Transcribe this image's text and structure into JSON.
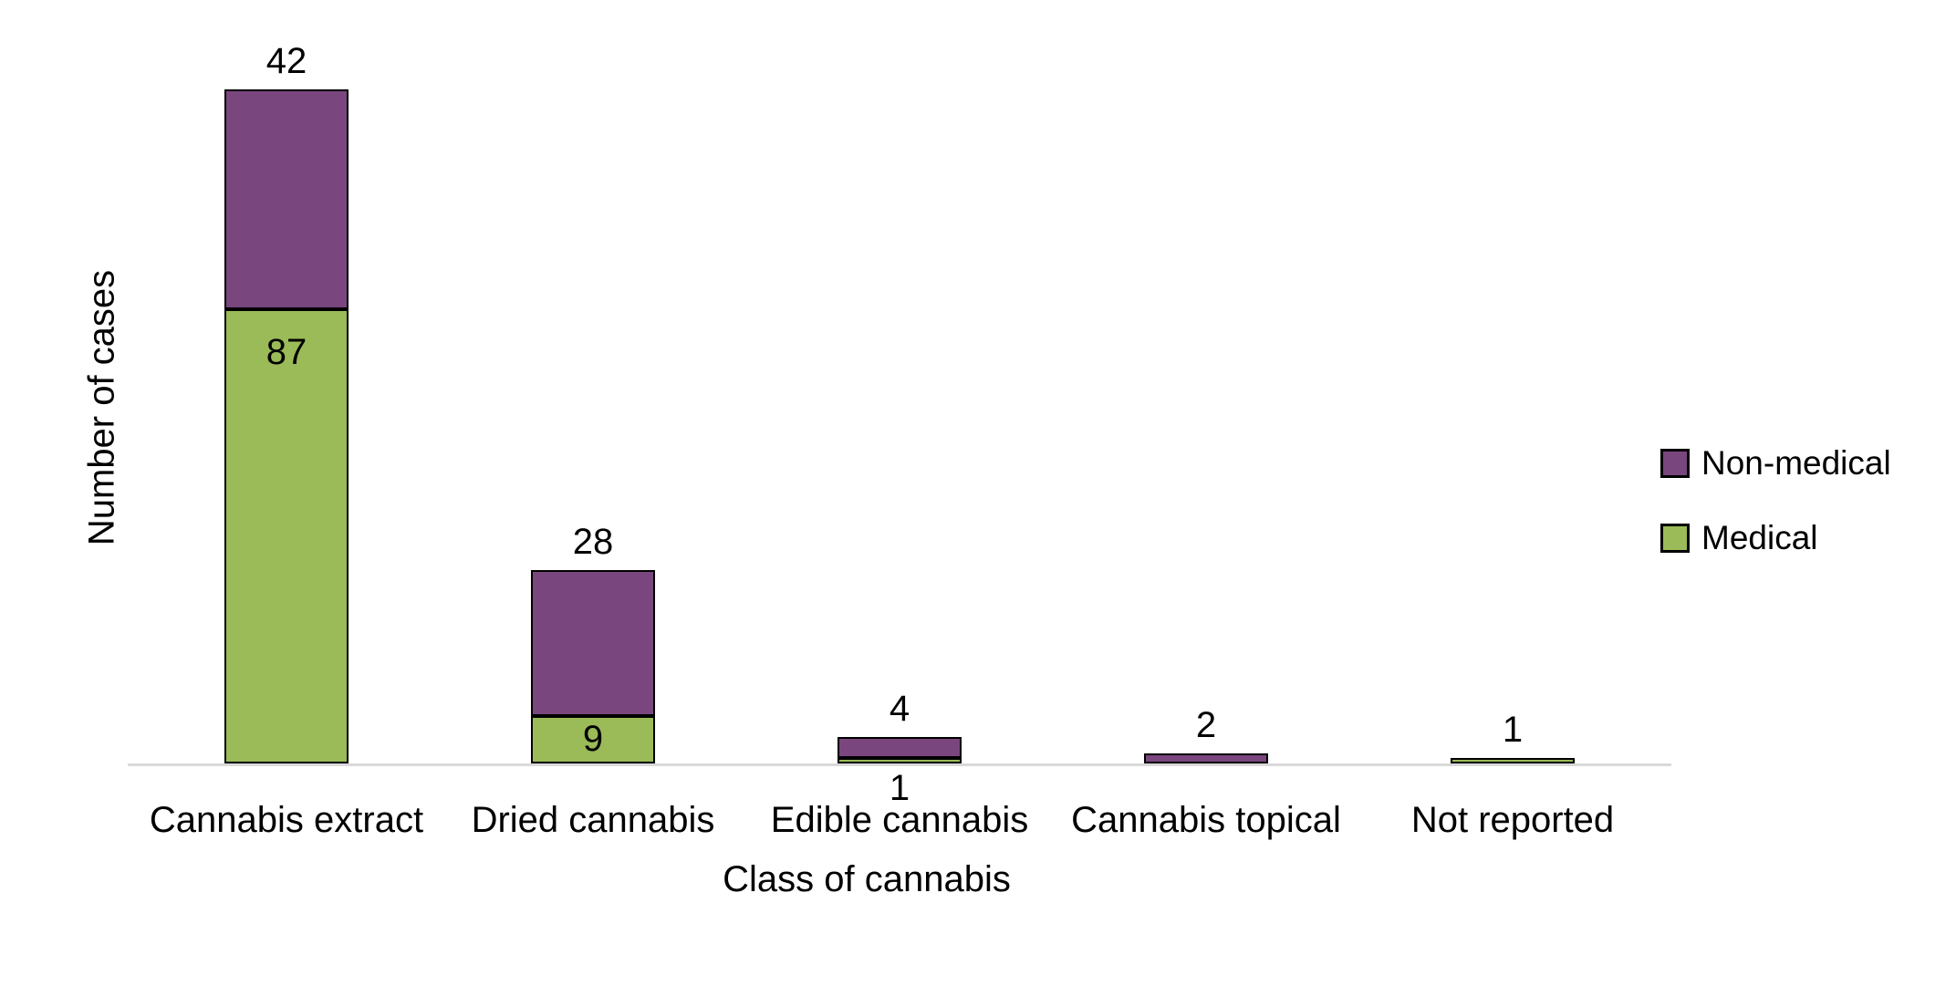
{
  "colors": {
    "non_medical": "#7A467E",
    "medical": "#9ABB57",
    "bar_border": "#000000",
    "axis_line": "#D9D9D9",
    "text": "#000000",
    "background": "#FFFFFF"
  },
  "chart_data": {
    "type": "bar",
    "stacked": true,
    "orientation": "vertical",
    "title": "",
    "xlabel": "Class of cannabis",
    "ylabel": "Number of cases",
    "categories": [
      "Cannabis extract",
      "Dried cannabis",
      "Edible cannabis",
      "Cannabis topical",
      "Not reported"
    ],
    "series": [
      {
        "name": "Medical",
        "color": "#9ABB57",
        "values": [
          87,
          9,
          1,
          0,
          1
        ]
      },
      {
        "name": "Non-medical",
        "color": "#7A467E",
        "values": [
          42,
          28,
          4,
          2,
          0
        ]
      }
    ],
    "ylim": [
      0,
      129
    ],
    "grid": false,
    "y_axis_tick_labels_visible": false,
    "legend": {
      "position": "right",
      "entries": [
        {
          "label": "Non-medical",
          "color": "#7A467E"
        },
        {
          "label": "Medical",
          "color": "#9ABB57"
        }
      ]
    },
    "data_labels": [
      {
        "category_index": 0,
        "series": "Non-medical",
        "text": "42",
        "placement": "above-bar"
      },
      {
        "category_index": 0,
        "series": "Medical",
        "text": "87",
        "placement": "inside-top"
      },
      {
        "category_index": 1,
        "series": "Non-medical",
        "text": "28",
        "placement": "above-bar"
      },
      {
        "category_index": 1,
        "series": "Medical",
        "text": "9",
        "placement": "inside"
      },
      {
        "category_index": 2,
        "series": "Non-medical",
        "text": "4",
        "placement": "above-bar"
      },
      {
        "category_index": 2,
        "series": "Medical",
        "text": "1",
        "placement": "below-axis"
      },
      {
        "category_index": 3,
        "series": "Non-medical",
        "text": "2",
        "placement": "above-bar"
      },
      {
        "category_index": 4,
        "series": "Medical",
        "text": "1",
        "placement": "above-bar"
      }
    ]
  }
}
